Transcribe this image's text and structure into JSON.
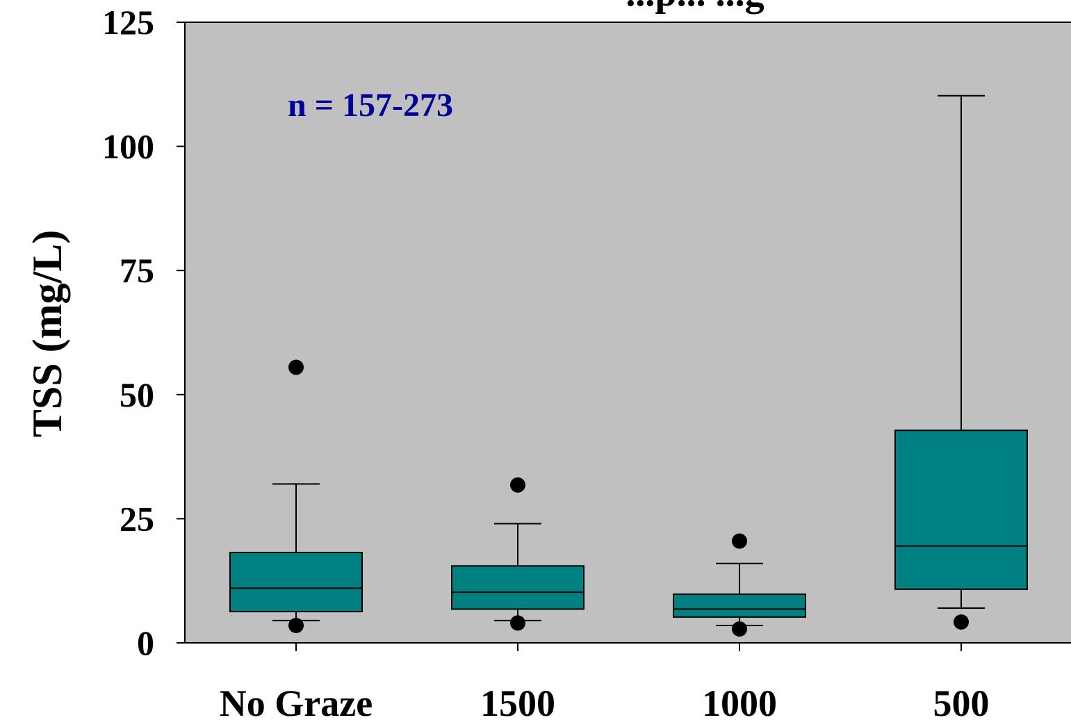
{
  "chart_data": {
    "type": "box",
    "title": "...p... ...g",
    "ylabel": "TSS (mg/L)",
    "xlabel": "",
    "ylim": [
      0,
      125
    ],
    "yticks": [
      0,
      25,
      50,
      75,
      100,
      125
    ],
    "annotation": "n = 157-273",
    "grid": false,
    "categories": [
      "No Graze",
      "1500",
      "1000",
      "500"
    ],
    "boxes": [
      {
        "category": "No Graze",
        "whisker_low": 4.5,
        "q1": 6.3,
        "median": 11.0,
        "q3": 18.2,
        "whisker_high": 32.0,
        "outliers": [
          3.5,
          55.5
        ]
      },
      {
        "category": "1500",
        "whisker_low": 4.5,
        "q1": 6.8,
        "median": 10.2,
        "q3": 15.5,
        "whisker_high": 24.0,
        "outliers": [
          4.0,
          31.8
        ]
      },
      {
        "category": "1000",
        "whisker_low": 3.5,
        "q1": 5.2,
        "median": 6.8,
        "q3": 9.8,
        "whisker_high": 16.0,
        "outliers": [
          2.8,
          20.5
        ]
      },
      {
        "category": "500",
        "whisker_low": 7.0,
        "q1": 10.8,
        "median": 19.5,
        "q3": 42.8,
        "whisker_high": 110.2,
        "outliers": [
          4.2
        ]
      }
    ],
    "colors": {
      "plot_background": "#c0c0c0",
      "box_fill": "#008080",
      "annotation": "#000099",
      "axis": "#000000"
    }
  }
}
